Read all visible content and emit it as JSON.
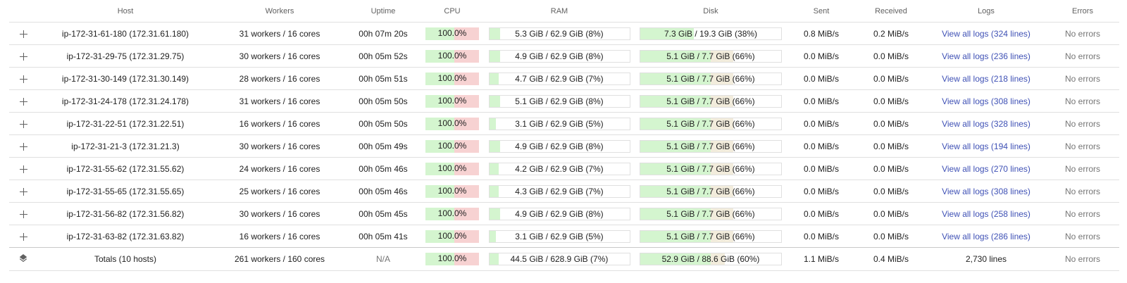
{
  "columns": {
    "host": "Host",
    "workers": "Workers",
    "uptime": "Uptime",
    "cpu": "CPU",
    "ram": "RAM",
    "disk": "Disk",
    "sent": "Sent",
    "received": "Received",
    "logs": "Logs",
    "errors": "Errors"
  },
  "rows": [
    {
      "host": "ip-172-31-61-180 (172.31.61.180)",
      "workers": "31 workers / 16 cores",
      "uptime": "00h 07m 20s",
      "cpu": "100.0%",
      "cpu_pct": 100,
      "ram": "5.3 GiB / 62.9 GiB (8%)",
      "ram_pct": 8,
      "disk": "7.3 GiB / 19.3 GiB (38%)",
      "disk_pct": 38,
      "sent": "0.8 MiB/s",
      "received": "0.2 MiB/s",
      "logs": "View all logs (324 lines)",
      "errors": "No errors"
    },
    {
      "host": "ip-172-31-29-75 (172.31.29.75)",
      "workers": "30 workers / 16 cores",
      "uptime": "00h 05m 52s",
      "cpu": "100.0%",
      "cpu_pct": 100,
      "ram": "4.9 GiB / 62.9 GiB (8%)",
      "ram_pct": 8,
      "disk": "5.1 GiB / 7.7 GiB (66%)",
      "disk_pct": 66,
      "sent": "0.0 MiB/s",
      "received": "0.0 MiB/s",
      "logs": "View all logs (236 lines)",
      "errors": "No errors"
    },
    {
      "host": "ip-172-31-30-149 (172.31.30.149)",
      "workers": "28 workers / 16 cores",
      "uptime": "00h 05m 51s",
      "cpu": "100.0%",
      "cpu_pct": 100,
      "ram": "4.7 GiB / 62.9 GiB (7%)",
      "ram_pct": 7,
      "disk": "5.1 GiB / 7.7 GiB (66%)",
      "disk_pct": 66,
      "sent": "0.0 MiB/s",
      "received": "0.0 MiB/s",
      "logs": "View all logs (218 lines)",
      "errors": "No errors"
    },
    {
      "host": "ip-172-31-24-178 (172.31.24.178)",
      "workers": "31 workers / 16 cores",
      "uptime": "00h 05m 50s",
      "cpu": "100.0%",
      "cpu_pct": 100,
      "ram": "5.1 GiB / 62.9 GiB (8%)",
      "ram_pct": 8,
      "disk": "5.1 GiB / 7.7 GiB (66%)",
      "disk_pct": 66,
      "sent": "0.0 MiB/s",
      "received": "0.0 MiB/s",
      "logs": "View all logs (308 lines)",
      "errors": "No errors"
    },
    {
      "host": "ip-172-31-22-51 (172.31.22.51)",
      "workers": "16 workers / 16 cores",
      "uptime": "00h 05m 50s",
      "cpu": "100.0%",
      "cpu_pct": 100,
      "ram": "3.1 GiB / 62.9 GiB (5%)",
      "ram_pct": 5,
      "disk": "5.1 GiB / 7.7 GiB (66%)",
      "disk_pct": 66,
      "sent": "0.0 MiB/s",
      "received": "0.0 MiB/s",
      "logs": "View all logs (328 lines)",
      "errors": "No errors"
    },
    {
      "host": "ip-172-31-21-3 (172.31.21.3)",
      "workers": "30 workers / 16 cores",
      "uptime": "00h 05m 49s",
      "cpu": "100.0%",
      "cpu_pct": 100,
      "ram": "4.9 GiB / 62.9 GiB (8%)",
      "ram_pct": 8,
      "disk": "5.1 GiB / 7.7 GiB (66%)",
      "disk_pct": 66,
      "sent": "0.0 MiB/s",
      "received": "0.0 MiB/s",
      "logs": "View all logs (194 lines)",
      "errors": "No errors"
    },
    {
      "host": "ip-172-31-55-62 (172.31.55.62)",
      "workers": "24 workers / 16 cores",
      "uptime": "00h 05m 46s",
      "cpu": "100.0%",
      "cpu_pct": 100,
      "ram": "4.2 GiB / 62.9 GiB (7%)",
      "ram_pct": 7,
      "disk": "5.1 GiB / 7.7 GiB (66%)",
      "disk_pct": 66,
      "sent": "0.0 MiB/s",
      "received": "0.0 MiB/s",
      "logs": "View all logs (270 lines)",
      "errors": "No errors"
    },
    {
      "host": "ip-172-31-55-65 (172.31.55.65)",
      "workers": "25 workers / 16 cores",
      "uptime": "00h 05m 46s",
      "cpu": "100.0%",
      "cpu_pct": 100,
      "ram": "4.3 GiB / 62.9 GiB (7%)",
      "ram_pct": 7,
      "disk": "5.1 GiB / 7.7 GiB (66%)",
      "disk_pct": 66,
      "sent": "0.0 MiB/s",
      "received": "0.0 MiB/s",
      "logs": "View all logs (308 lines)",
      "errors": "No errors"
    },
    {
      "host": "ip-172-31-56-82 (172.31.56.82)",
      "workers": "30 workers / 16 cores",
      "uptime": "00h 05m 45s",
      "cpu": "100.0%",
      "cpu_pct": 100,
      "ram": "4.9 GiB / 62.9 GiB (8%)",
      "ram_pct": 8,
      "disk": "5.1 GiB / 7.7 GiB (66%)",
      "disk_pct": 66,
      "sent": "0.0 MiB/s",
      "received": "0.0 MiB/s",
      "logs": "View all logs (258 lines)",
      "errors": "No errors"
    },
    {
      "host": "ip-172-31-63-82 (172.31.63.82)",
      "workers": "16 workers / 16 cores",
      "uptime": "00h 05m 41s",
      "cpu": "100.0%",
      "cpu_pct": 100,
      "ram": "3.1 GiB / 62.9 GiB (5%)",
      "ram_pct": 5,
      "disk": "5.1 GiB / 7.7 GiB (66%)",
      "disk_pct": 66,
      "sent": "0.0 MiB/s",
      "received": "0.0 MiB/s",
      "logs": "View all logs (286 lines)",
      "errors": "No errors"
    }
  ],
  "totals": {
    "host": "Totals (10 hosts)",
    "workers": "261 workers / 160 cores",
    "uptime": "N/A",
    "cpu": "100.0%",
    "cpu_pct": 100,
    "ram": "44.5 GiB / 628.9 GiB (7%)",
    "ram_pct": 7,
    "disk": "52.9 GiB / 88.6 GiB (60%)",
    "disk_pct": 60,
    "sent": "1.1 MiB/s",
    "received": "0.4 MiB/s",
    "logs": "2,730 lines",
    "errors": "No errors"
  },
  "icons": {
    "expand": "plus-icon",
    "totals": "layers-icon"
  },
  "colors": {
    "cpu_bar": "#f7d2d2",
    "usage_fill": "#d4f5cf",
    "disk_warn_fill": "#f2ecdc",
    "link": "#3f51b5"
  }
}
